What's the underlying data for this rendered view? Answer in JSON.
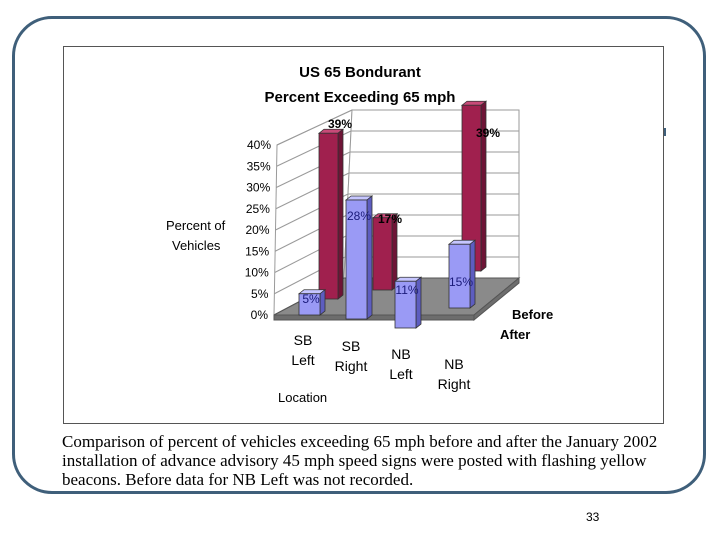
{
  "chart_data": {
    "type": "bar",
    "title": "US 65 Bondurant",
    "subtitle": "Percent Exceeding 65 mph",
    "ylabel_line1": "Percent of",
    "ylabel_line2": "Vehicles",
    "xlabel": "Location",
    "ylim": [
      0,
      40
    ],
    "yticks": [
      "0%",
      "5%",
      "10%",
      "15%",
      "20%",
      "25%",
      "30%",
      "35%",
      "40%"
    ],
    "categories": [
      "SB Left",
      "SB Right",
      "NB Left",
      "NB Right"
    ],
    "series": [
      {
        "name": "Before",
        "values": [
          39,
          17,
          null,
          39
        ],
        "labels": [
          "39%",
          "17%",
          "",
          "39%"
        ]
      },
      {
        "name": "After",
        "values": [
          5,
          28,
          11,
          15
        ],
        "labels": [
          "5%",
          "28%",
          "11%",
          "15%"
        ]
      }
    ],
    "colors": {
      "before_front": "#a0204e",
      "before_side": "#6e1436",
      "before_top": "#c84a78",
      "after_front": "#9a9af5",
      "after_side": "#5d5dc0",
      "after_top": "#c6c6ff",
      "floor": "#8a8a8a",
      "floor_front": "#6d6d6d",
      "grid": "#9a9a9a"
    }
  },
  "caption": "Comparison of percent of vehicles exceeding 65 mph before and after the January 2002 installation of advance advisory 45 mph speed signs were posted with flashing yellow beacons. Before data for NB Left was not recorded.",
  "page_number": "33"
}
